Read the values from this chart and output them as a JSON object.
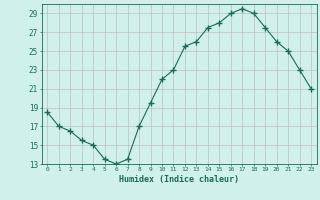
{
  "x": [
    0,
    1,
    2,
    3,
    4,
    5,
    6,
    7,
    8,
    9,
    10,
    11,
    12,
    13,
    14,
    15,
    16,
    17,
    18,
    19,
    20,
    21,
    22,
    23
  ],
  "y": [
    18.5,
    17.0,
    16.5,
    15.5,
    15.0,
    13.5,
    13.0,
    13.5,
    17.0,
    19.5,
    22.0,
    23.0,
    25.5,
    26.0,
    27.5,
    28.0,
    29.0,
    29.5,
    29.0,
    27.5,
    26.0,
    25.0,
    23.0,
    21.0
  ],
  "line_color": "#1a6b5a",
  "marker": "+",
  "marker_size": 4,
  "bg_color": "#cff0eb",
  "xlabel": "Humidex (Indice chaleur)",
  "ylim": [
    13,
    30
  ],
  "xlim": [
    -0.5,
    23.5
  ],
  "yticks": [
    13,
    15,
    17,
    19,
    21,
    23,
    25,
    27,
    29
  ],
  "xticks": [
    0,
    1,
    2,
    3,
    4,
    5,
    6,
    7,
    8,
    9,
    10,
    11,
    12,
    13,
    14,
    15,
    16,
    17,
    18,
    19,
    20,
    21,
    22,
    23
  ],
  "font_color": "#1a6b5a",
  "grid_color": "#c0b0b0",
  "spine_color": "#1a6b5a"
}
